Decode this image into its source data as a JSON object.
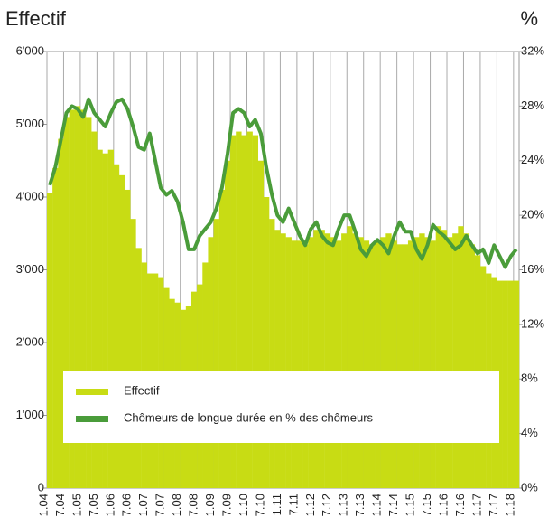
{
  "chart_data": {
    "type": "combo",
    "ylabel": "Effectif",
    "y2label": "%",
    "categories": [
      "1.04",
      null,
      null,
      "7.04",
      null,
      null,
      "1.05",
      null,
      null,
      "7.05",
      null,
      null,
      "1.06",
      null,
      null,
      "7.06",
      null,
      null,
      "1.07",
      null,
      null,
      "7.07",
      null,
      null,
      "1.08",
      null,
      null,
      "7.08",
      null,
      null,
      "1.09",
      null,
      null,
      "7.09",
      null,
      null,
      "1.10",
      null,
      null,
      "7.10",
      null,
      null,
      "1.11",
      null,
      null,
      "7.11",
      null,
      null,
      "1.12",
      null,
      null,
      "7.12",
      null,
      null,
      "1.13",
      null,
      null,
      "7.13",
      null,
      null,
      "1.14",
      null,
      null,
      "7.14",
      null,
      null,
      "1.15",
      null,
      null,
      "7.15",
      null,
      null,
      "1.16",
      null,
      null,
      "7.16",
      null,
      null,
      "1.17",
      null,
      null,
      "7.17",
      null,
      null,
      "1.18"
    ],
    "series": [
      {
        "name": "Effectif",
        "type": "bar",
        "color": "#c8dc14",
        "values": [
          4050,
          4400,
          4800,
          5100,
          5200,
          5250,
          5200,
          5100,
          4900,
          4650,
          4600,
          4650,
          4450,
          4300,
          4100,
          3700,
          3300,
          3100,
          2950,
          2950,
          2900,
          2750,
          2600,
          2550,
          2450,
          2500,
          2700,
          2800,
          3100,
          3450,
          3700,
          4100,
          4500,
          4850,
          4900,
          4850,
          4900,
          4850,
          4500,
          4000,
          3700,
          3550,
          3500,
          3450,
          3400,
          3400,
          3350,
          3450,
          3550,
          3550,
          3500,
          3450,
          3400,
          3500,
          3600,
          3500,
          3450,
          3400,
          3350,
          3400,
          3450,
          3500,
          3400,
          3350,
          3350,
          3400,
          3450,
          3500,
          3450,
          3400,
          3600,
          3550,
          3450,
          3500,
          3600,
          3500,
          3350,
          3200,
          3050,
          2950,
          2900,
          2850,
          2850,
          2850,
          2850
        ]
      },
      {
        "name": "Chômeurs de longue durée en % des chômeurs",
        "type": "line",
        "axis": "y2",
        "color": "#4a9c3a",
        "values": [
          22.2,
          23.5,
          25.5,
          27.5,
          28.0,
          27.8,
          27.2,
          28.5,
          27.5,
          27.0,
          26.5,
          27.5,
          28.3,
          28.5,
          27.8,
          26.5,
          25.0,
          24.8,
          26.0,
          24.0,
          22.0,
          21.5,
          21.8,
          21.0,
          19.5,
          17.5,
          17.5,
          18.5,
          19.0,
          19.5,
          20.5,
          22.0,
          24.5,
          27.5,
          27.8,
          27.5,
          26.5,
          27.0,
          26.0,
          23.5,
          21.5,
          20.0,
          19.5,
          20.5,
          19.5,
          18.5,
          17.8,
          19.0,
          19.5,
          18.5,
          18.0,
          17.8,
          19.0,
          20.0,
          20.0,
          18.8,
          17.5,
          17.0,
          17.8,
          18.2,
          17.8,
          17.2,
          18.5,
          19.5,
          18.8,
          18.8,
          17.5,
          16.8,
          17.8,
          19.3,
          18.8,
          18.5,
          18.0,
          17.5,
          17.8,
          18.5,
          17.8,
          17.2,
          17.5,
          16.5,
          17.8,
          17.0,
          16.2,
          17.0,
          17.5
        ]
      }
    ],
    "ylim": [
      0,
      6000
    ],
    "yticks": [
      0,
      {
        "value": 1000,
        "label": "1'000"
      },
      {
        "value": 2000,
        "label": "2'000"
      },
      {
        "value": 3000,
        "label": "3'000"
      },
      {
        "value": 4000,
        "label": "4'000"
      },
      {
        "value": 5000,
        "label": "5'000"
      },
      {
        "value": 6000,
        "label": "6'000"
      }
    ],
    "y2lim": [
      0,
      32
    ],
    "y2ticks": [
      {
        "value": 0,
        "label": "0%"
      },
      {
        "value": 4,
        "label": "4%"
      },
      {
        "value": 8,
        "label": "8%"
      },
      {
        "value": 12,
        "label": "12%"
      },
      {
        "value": 16,
        "label": "16%"
      },
      {
        "value": 20,
        "label": "20%"
      },
      {
        "value": 24,
        "label": "24%"
      },
      {
        "value": 28,
        "label": "28%"
      },
      {
        "value": 32,
        "label": "32%"
      }
    ]
  }
}
